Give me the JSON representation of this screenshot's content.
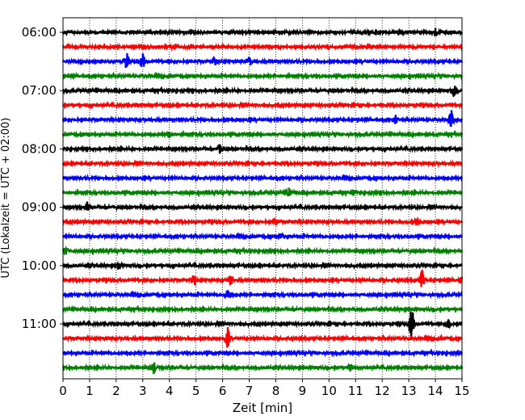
{
  "chart_data": {
    "type": "line",
    "xlabel": "Zeit  [min]",
    "ylabel": "UTC (Lokalzeit = UTC + 02:00)",
    "xlim": [
      0,
      15
    ],
    "x_ticks": [
      "0",
      "1",
      "2",
      "3",
      "4",
      "5",
      "6",
      "7",
      "8",
      "9",
      "10",
      "11",
      "12",
      "13",
      "14",
      "15"
    ],
    "y_tick_labels": [
      "06:00",
      "07:00",
      "08:00",
      "09:00",
      "10:00",
      "11:00"
    ],
    "grid": "vertical dotted at each minute",
    "trace_colors": [
      "#000000",
      "#ff0000",
      "#0000ff",
      "#008000"
    ],
    "traces": [
      {
        "start": "06:00",
        "color": "#000000",
        "bursts": [
          [
            14.0,
            0.3
          ]
        ]
      },
      {
        "start": "06:15",
        "color": "#ff0000",
        "bursts": []
      },
      {
        "start": "06:30",
        "color": "#0000ff",
        "bursts": [
          [
            2.4,
            0.7
          ],
          [
            3.0,
            0.6
          ],
          [
            5.7,
            0.4
          ],
          [
            7.0,
            0.4
          ]
        ]
      },
      {
        "start": "06:45",
        "color": "#008000",
        "bursts": []
      },
      {
        "start": "07:00",
        "color": "#000000",
        "bursts": [
          [
            14.7,
            0.5
          ]
        ]
      },
      {
        "start": "07:15",
        "color": "#ff0000",
        "bursts": []
      },
      {
        "start": "07:30",
        "color": "#0000ff",
        "bursts": [
          [
            12.5,
            0.4
          ],
          [
            14.6,
            0.9
          ]
        ]
      },
      {
        "start": "07:45",
        "color": "#008000",
        "bursts": [
          [
            4.0,
            0.3
          ]
        ]
      },
      {
        "start": "08:00",
        "color": "#000000",
        "bursts": [
          [
            5.9,
            0.4
          ]
        ]
      },
      {
        "start": "08:15",
        "color": "#ff0000",
        "bursts": []
      },
      {
        "start": "08:30",
        "color": "#0000ff",
        "bursts": []
      },
      {
        "start": "08:45",
        "color": "#008000",
        "bursts": [
          [
            8.5,
            0.3
          ],
          [
            10.9,
            0.3
          ]
        ]
      },
      {
        "start": "09:00",
        "color": "#000000",
        "bursts": [
          [
            0.9,
            0.4
          ]
        ]
      },
      {
        "start": "09:15",
        "color": "#ff0000",
        "bursts": [
          [
            8.0,
            0.3
          ],
          [
            13.3,
            0.4
          ]
        ]
      },
      {
        "start": "09:30",
        "color": "#0000ff",
        "bursts": [
          [
            8.2,
            0.3
          ]
        ]
      },
      {
        "start": "09:45",
        "color": "#008000",
        "bursts": [
          [
            0.1,
            0.4
          ]
        ]
      },
      {
        "start": "10:00",
        "color": "#000000",
        "bursts": [
          [
            2.1,
            0.3
          ]
        ]
      },
      {
        "start": "10:15",
        "color": "#ff0000",
        "bursts": [
          [
            4.9,
            0.5
          ],
          [
            6.3,
            0.4
          ],
          [
            13.5,
            0.8
          ],
          [
            15.0,
            0.3
          ]
        ]
      },
      {
        "start": "10:30",
        "color": "#0000ff",
        "bursts": [
          [
            6.2,
            0.4
          ]
        ]
      },
      {
        "start": "10:45",
        "color": "#008000",
        "bursts": []
      },
      {
        "start": "11:00",
        "color": "#000000",
        "bursts": [
          [
            13.1,
            1.4
          ],
          [
            14.5,
            0.4
          ]
        ]
      },
      {
        "start": "11:15",
        "color": "#ff0000",
        "bursts": [
          [
            6.2,
            1.0
          ]
        ]
      },
      {
        "start": "11:30",
        "color": "#0000ff",
        "bursts": []
      },
      {
        "start": "11:45",
        "color": "#008000",
        "bursts": [
          [
            3.4,
            0.5
          ],
          [
            10.8,
            0.3
          ]
        ]
      }
    ]
  }
}
